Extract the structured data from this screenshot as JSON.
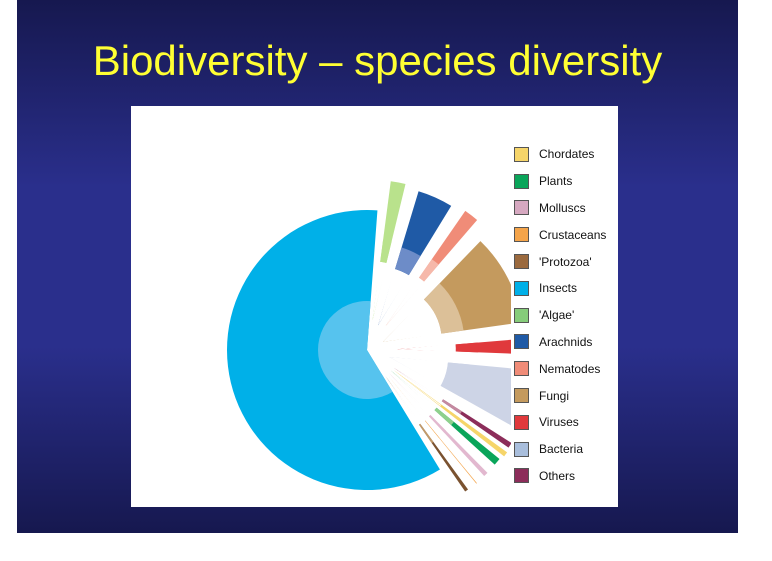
{
  "slide": {
    "title": "Biodiversity – species diversity"
  },
  "chart_data": {
    "type": "pie",
    "style": "exploded pie with inner radial subdivisions",
    "slices": [
      {
        "label": "Insects",
        "color": "#00b0e8",
        "inner_color": "#56c3ee",
        "value": 56.3
      },
      {
        "label": "'Algae'",
        "color": "#b9e28c",
        "inner_color": "#b9e28c",
        "value": 2.4
      },
      {
        "label": "Arachnids",
        "color": "#1f5aa6",
        "inner_color": "#6d8cc8",
        "value": 4.6
      },
      {
        "label": "Nematodes",
        "color": "#f08c78",
        "inner_color": "#f6b8aa",
        "value": 2.4
      },
      {
        "label": "Fungi",
        "color": "#c49a5e",
        "inner_color": "#dcc098",
        "value": 10.6
      },
      {
        "label": "Viruses",
        "color": "#e0393c",
        "inner_color": "#e0393c",
        "value": 2.6
      },
      {
        "label": "Bacteria",
        "color": "#cdd4e6",
        "inner_color": "#cdd4e6",
        "value": 7.0
      },
      {
        "label": "Others",
        "color": "#8c2d5a",
        "inner_color": "#c48aa0",
        "value": 1.4
      },
      {
        "label": "Chordates",
        "color": "#f6d56a",
        "inner_color": "#f6d56a",
        "value": 0.3
      },
      {
        "label": "Plants",
        "color": "#0aa55a",
        "inner_color": "#8fd08c",
        "value": 1.6
      },
      {
        "label": "Molluscs",
        "color": "#e2b8cf",
        "inner_color": "#e2b8cf",
        "value": 1.3
      },
      {
        "label": "Crustaceans",
        "color": "#f4a44a",
        "inner_color": "#f4a44a",
        "value": 0.9
      },
      {
        "label": "'Protozoa'",
        "color": "#7a5230",
        "inner_color": "#c29a6a",
        "value": 1.2
      }
    ],
    "legend": {
      "position": "right",
      "entries": [
        {
          "label": "Chordates",
          "color": "#f6d56a"
        },
        {
          "label": "Plants",
          "color": "#0aa55a"
        },
        {
          "label": "Molluscs",
          "color": "#d6a8c0"
        },
        {
          "label": "Crustaceans",
          "color": "#f4a44a"
        },
        {
          "label": "'Protozoa'",
          "color": "#9b6a3e"
        },
        {
          "label": "Insects",
          "color": "#00b0e8"
        },
        {
          "label": "'Algae'",
          "color": "#86cc7a"
        },
        {
          "label": "Arachnids",
          "color": "#1f5aa6"
        },
        {
          "label": "Nematodes",
          "color": "#f08c78"
        },
        {
          "label": "Fungi",
          "color": "#c49a5e"
        },
        {
          "label": "Viruses",
          "color": "#e0393c"
        },
        {
          "label": "Bacteria",
          "color": "#a9bedc"
        },
        {
          "label": "Others",
          "color": "#8c2d5a"
        }
      ]
    }
  }
}
